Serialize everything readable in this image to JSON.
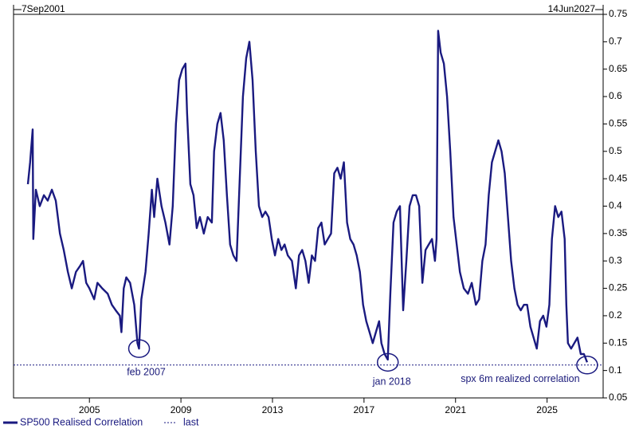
{
  "chart_data": {
    "type": "line",
    "xlim": [
      {
        "value": 2001.685,
        "label": "7Sep2001"
      },
      {
        "value": 2027.45,
        "label": "14Jun2027"
      }
    ],
    "xticks": [
      2005,
      2009,
      2013,
      2017,
      2021,
      2025
    ],
    "ylim": [
      0.05,
      0.75
    ],
    "yticks": [
      0.05,
      0.1,
      0.15,
      0.2,
      0.25,
      0.3,
      0.35,
      0.4,
      0.45,
      0.5,
      0.55,
      0.6,
      0.65,
      0.7,
      0.75
    ],
    "series": [
      {
        "name": "SP500 Realised Correlation",
        "color": "#1a1a80",
        "x": [
          2002.31,
          2002.41,
          2002.52,
          2002.55,
          2002.66,
          2002.83,
          2003.01,
          2003.18,
          2003.36,
          2003.53,
          2003.71,
          2003.88,
          2004.06,
          2004.23,
          2004.41,
          2004.58,
          2004.72,
          2004.86,
          2005.0,
          2005.21,
          2005.35,
          2005.56,
          2005.8,
          2005.98,
          2006.15,
          2006.33,
          2006.4,
          2006.5,
          2006.61,
          2006.78,
          2006.96,
          2007.1,
          2007.17,
          2007.27,
          2007.45,
          2007.59,
          2007.73,
          2007.83,
          2007.97,
          2008.15,
          2008.32,
          2008.5,
          2008.64,
          2008.78,
          2008.92,
          2009.06,
          2009.2,
          2009.27,
          2009.41,
          2009.55,
          2009.69,
          2009.83,
          2010.0,
          2010.17,
          2010.35,
          2010.45,
          2010.59,
          2010.73,
          2010.87,
          2011.01,
          2011.15,
          2011.29,
          2011.43,
          2011.57,
          2011.71,
          2011.85,
          2011.99,
          2012.13,
          2012.27,
          2012.41,
          2012.55,
          2012.69,
          2012.83,
          2012.97,
          2013.11,
          2013.25,
          2013.39,
          2013.53,
          2013.67,
          2013.85,
          2014.02,
          2014.16,
          2014.3,
          2014.44,
          2014.58,
          2014.72,
          2014.86,
          2015.0,
          2015.14,
          2015.28,
          2015.42,
          2015.56,
          2015.7,
          2015.84,
          2015.98,
          2016.12,
          2016.26,
          2016.4,
          2016.54,
          2016.68,
          2016.82,
          2016.96,
          2017.1,
          2017.24,
          2017.38,
          2017.52,
          2017.66,
          2017.76,
          2017.9,
          2018.04,
          2018.15,
          2018.29,
          2018.43,
          2018.57,
          2018.71,
          2018.85,
          2018.99,
          2019.13,
          2019.27,
          2019.41,
          2019.55,
          2019.69,
          2019.83,
          2019.97,
          2020.1,
          2020.17,
          2020.24,
          2020.35,
          2020.49,
          2020.63,
          2020.77,
          2020.91,
          2021.05,
          2021.19,
          2021.36,
          2021.54,
          2021.71,
          2021.89,
          2022.03,
          2022.17,
          2022.31,
          2022.45,
          2022.59,
          2022.73,
          2022.87,
          2023.01,
          2023.15,
          2023.29,
          2023.43,
          2023.57,
          2023.71,
          2023.85,
          2023.99,
          2024.13,
          2024.27,
          2024.41,
          2024.55,
          2024.69,
          2024.83,
          2024.97,
          2025.1,
          2025.21,
          2025.35,
          2025.49,
          2025.63,
          2025.77,
          2025.84,
          2025.91,
          2026.05,
          2026.19,
          2026.33,
          2026.47,
          2026.61,
          2026.75
        ],
        "values": [
          0.44,
          0.48,
          0.54,
          0.34,
          0.43,
          0.4,
          0.42,
          0.41,
          0.43,
          0.41,
          0.35,
          0.32,
          0.28,
          0.25,
          0.28,
          0.29,
          0.3,
          0.26,
          0.25,
          0.23,
          0.26,
          0.25,
          0.24,
          0.22,
          0.21,
          0.2,
          0.17,
          0.25,
          0.27,
          0.26,
          0.22,
          0.15,
          0.14,
          0.23,
          0.28,
          0.35,
          0.43,
          0.38,
          0.45,
          0.4,
          0.37,
          0.33,
          0.4,
          0.55,
          0.63,
          0.65,
          0.66,
          0.57,
          0.44,
          0.42,
          0.36,
          0.38,
          0.35,
          0.38,
          0.37,
          0.5,
          0.55,
          0.57,
          0.52,
          0.42,
          0.33,
          0.31,
          0.3,
          0.45,
          0.6,
          0.67,
          0.7,
          0.63,
          0.5,
          0.4,
          0.38,
          0.39,
          0.38,
          0.34,
          0.31,
          0.34,
          0.32,
          0.33,
          0.31,
          0.3,
          0.25,
          0.31,
          0.32,
          0.3,
          0.26,
          0.31,
          0.3,
          0.36,
          0.37,
          0.33,
          0.34,
          0.35,
          0.46,
          0.47,
          0.45,
          0.48,
          0.37,
          0.34,
          0.33,
          0.31,
          0.28,
          0.22,
          0.19,
          0.17,
          0.15,
          0.17,
          0.19,
          0.15,
          0.13,
          0.12,
          0.24,
          0.37,
          0.39,
          0.4,
          0.21,
          0.3,
          0.4,
          0.42,
          0.42,
          0.4,
          0.26,
          0.32,
          0.33,
          0.34,
          0.3,
          0.34,
          0.72,
          0.68,
          0.66,
          0.6,
          0.5,
          0.38,
          0.33,
          0.28,
          0.25,
          0.24,
          0.26,
          0.22,
          0.23,
          0.3,
          0.33,
          0.42,
          0.48,
          0.5,
          0.52,
          0.5,
          0.46,
          0.38,
          0.3,
          0.25,
          0.22,
          0.21,
          0.22,
          0.22,
          0.18,
          0.16,
          0.14,
          0.19,
          0.2,
          0.18,
          0.22,
          0.34,
          0.4,
          0.38,
          0.39,
          0.34,
          0.22,
          0.15,
          0.14,
          0.15,
          0.16,
          0.13,
          0.13,
          0.115
        ]
      }
    ],
    "reference_line": {
      "name": "last",
      "value": 0.11
    },
    "annotations": [
      {
        "text": "feb 2007",
        "x": 2007.17,
        "y": 0.14
      },
      {
        "text": "jan 2018",
        "x": 2018.04,
        "y": 0.115
      },
      {
        "text": "spx 6m realized correlation",
        "x": 2026.75,
        "y": 0.11
      }
    ]
  }
}
